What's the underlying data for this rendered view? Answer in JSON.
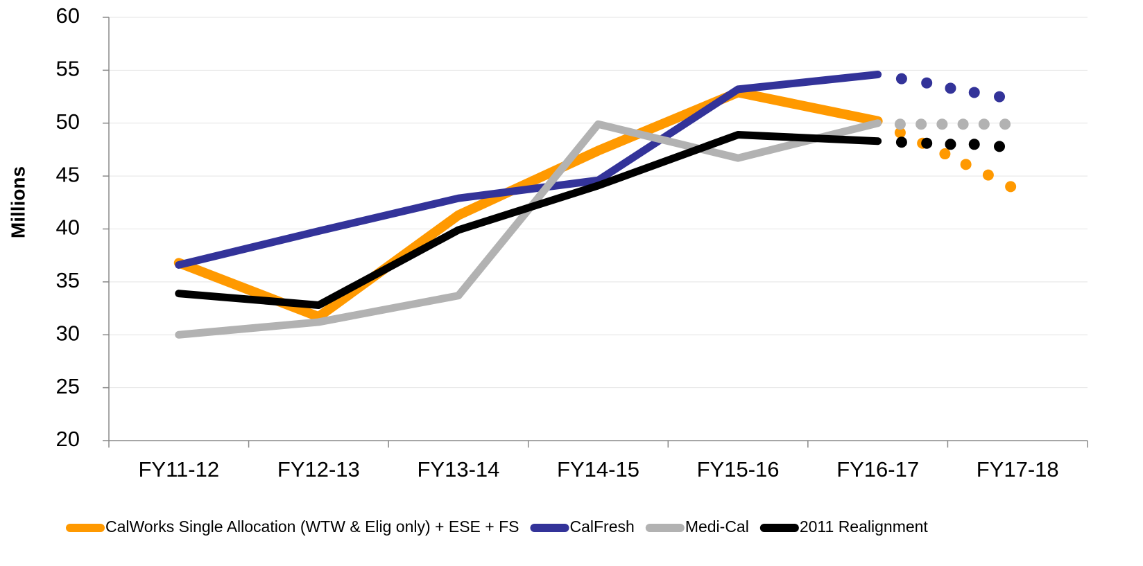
{
  "chart_data": {
    "type": "line",
    "ylabel": "Millions",
    "categories": [
      "FY11-12",
      "FY12-13",
      "FY13-14",
      "FY14-15",
      "FY15-16",
      "FY16-17",
      "FY17-18"
    ],
    "ylim": [
      20,
      60
    ],
    "yticks": [
      20,
      25,
      30,
      35,
      40,
      45,
      50,
      55,
      60
    ],
    "grid": true,
    "legend": "bottom",
    "series": [
      {
        "name": "CalWorks Single Allocation (WTW & Elig only) + ESE + FS",
        "color": "#ff9900",
        "width": 14,
        "values": [
          36.8,
          31.7,
          41.3,
          47.4,
          52.9,
          50.2,
          null
        ],
        "projection": {
          "x": [
            5.16,
            5.32,
            5.48,
            5.63,
            5.79,
            5.95
          ],
          "values": [
            49.1,
            48.1,
            47.1,
            46.1,
            45.1,
            44.0
          ]
        }
      },
      {
        "name": "CalFresh",
        "color": "#333399",
        "width": 11,
        "values": [
          36.6,
          39.8,
          42.9,
          44.6,
          53.2,
          54.6,
          null
        ],
        "projection": {
          "x": [
            5.17,
            5.35,
            5.52,
            5.69,
            5.87
          ],
          "values": [
            54.2,
            53.8,
            53.3,
            52.9,
            52.5
          ]
        }
      },
      {
        "name": "Medi-Cal",
        "color": "#b2b2b2",
        "width": 11,
        "values": [
          30.0,
          31.2,
          33.7,
          49.9,
          46.7,
          50.0,
          null
        ],
        "projection": {
          "x": [
            5.16,
            5.31,
            5.46,
            5.61,
            5.76,
            5.91
          ],
          "values": [
            49.9,
            49.9,
            49.9,
            49.9,
            49.9,
            49.9
          ]
        }
      },
      {
        "name": "2011 Realignment",
        "color": "#000000",
        "width": 11,
        "values": [
          33.9,
          32.8,
          39.9,
          44.1,
          48.9,
          48.3,
          null
        ],
        "projection": {
          "x": [
            5.17,
            5.35,
            5.52,
            5.69,
            5.87
          ],
          "values": [
            48.2,
            48.1,
            48.0,
            48.0,
            47.8
          ]
        }
      }
    ]
  }
}
